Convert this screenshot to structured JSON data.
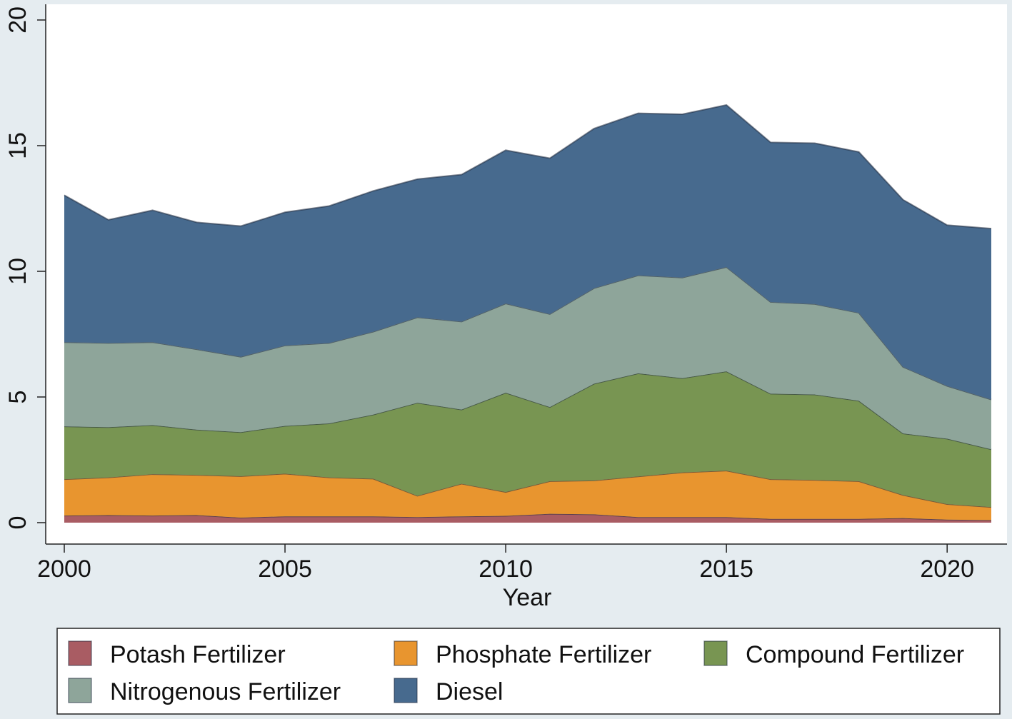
{
  "chart_data": {
    "type": "area",
    "stacked": true,
    "title": "",
    "xlabel": "Year",
    "ylabel": "",
    "xlim": [
      2000,
      2021
    ],
    "ylim": [
      0,
      20
    ],
    "x_ticks": [
      2000,
      2005,
      2010,
      2015,
      2020
    ],
    "y_ticks": [
      0,
      5,
      10,
      15,
      20
    ],
    "x": [
      2000,
      2001,
      2002,
      2003,
      2004,
      2005,
      2006,
      2007,
      2008,
      2009,
      2010,
      2011,
      2012,
      2013,
      2014,
      2015,
      2016,
      2017,
      2018,
      2019,
      2020,
      2021
    ],
    "series": [
      {
        "name": "Potash Fertilizer",
        "color": "#a95c63",
        "values": [
          0.28,
          0.3,
          0.28,
          0.3,
          0.2,
          0.25,
          0.25,
          0.25,
          0.22,
          0.25,
          0.27,
          0.35,
          0.33,
          0.22,
          0.22,
          0.22,
          0.15,
          0.15,
          0.15,
          0.18,
          0.12,
          0.1
        ]
      },
      {
        "name": "Phosphate Fertilizer",
        "color": "#e8952f",
        "values": [
          1.45,
          1.5,
          1.65,
          1.6,
          1.65,
          1.7,
          1.55,
          1.5,
          0.85,
          1.3,
          0.95,
          1.3,
          1.35,
          1.62,
          1.78,
          1.85,
          1.58,
          1.55,
          1.5,
          0.92,
          0.62,
          0.52
        ]
      },
      {
        "name": "Compound Fertilizer",
        "color": "#789552",
        "values": [
          2.1,
          2.0,
          1.95,
          1.8,
          1.75,
          1.9,
          2.15,
          2.55,
          3.7,
          2.95,
          3.95,
          2.95,
          3.85,
          4.1,
          3.75,
          3.95,
          3.4,
          3.4,
          3.2,
          2.45,
          2.6,
          2.3
        ]
      },
      {
        "name": "Nitrogenous Fertilizer",
        "color": "#8ea59a",
        "values": [
          3.35,
          3.35,
          3.3,
          3.2,
          3.0,
          3.2,
          3.2,
          3.3,
          3.4,
          3.5,
          3.55,
          3.7,
          3.8,
          3.9,
          4.0,
          4.15,
          3.65,
          3.6,
          3.5,
          2.65,
          2.1,
          1.98
        ]
      },
      {
        "name": "Diesel",
        "color": "#476a8e",
        "values": [
          5.85,
          4.9,
          5.25,
          5.05,
          5.2,
          5.3,
          5.45,
          5.6,
          5.5,
          5.85,
          6.1,
          6.2,
          6.35,
          6.45,
          6.5,
          6.45,
          6.35,
          6.4,
          6.4,
          6.65,
          6.4,
          6.8
        ]
      }
    ],
    "legend_rows": [
      [
        "Potash Fertilizer",
        "Phosphate Fertilizer",
        "Compound Fertilizer"
      ],
      [
        "Nitrogenous Fertilizer",
        "Diesel"
      ]
    ],
    "legend_position": "bottom"
  }
}
